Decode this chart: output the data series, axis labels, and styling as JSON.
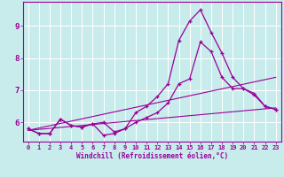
{
  "xlabel": "Windchill (Refroidissement éolien,°C)",
  "bg_color": "#c8ecec",
  "grid_color": "#ffffff",
  "line_color": "#990099",
  "xlim": [
    -0.5,
    23.5
  ],
  "ylim": [
    5.4,
    9.75
  ],
  "xticks": [
    0,
    1,
    2,
    3,
    4,
    5,
    6,
    7,
    8,
    9,
    10,
    11,
    12,
    13,
    14,
    15,
    16,
    17,
    18,
    19,
    20,
    21,
    22,
    23
  ],
  "yticks": [
    6,
    7,
    8,
    9
  ],
  "curve_main_x": [
    0,
    1,
    2,
    3,
    4,
    5,
    6,
    7,
    8,
    9,
    10,
    11,
    12,
    13,
    14,
    15,
    16,
    17,
    18,
    19,
    20,
    21,
    22,
    23
  ],
  "curve_main_y": [
    5.8,
    5.65,
    5.65,
    6.1,
    5.9,
    5.85,
    5.95,
    5.6,
    5.65,
    5.8,
    6.3,
    6.5,
    6.8,
    7.2,
    8.55,
    9.15,
    9.5,
    8.8,
    8.15,
    7.4,
    7.05,
    6.9,
    6.5,
    6.4
  ],
  "curve2_x": [
    0,
    1,
    2,
    3,
    4,
    5,
    6,
    7,
    8,
    9,
    10,
    11,
    12,
    13,
    14,
    15,
    16,
    17,
    18,
    19,
    20,
    21,
    22,
    23
  ],
  "curve2_y": [
    5.8,
    5.65,
    5.65,
    6.1,
    5.9,
    5.85,
    5.95,
    6.0,
    5.7,
    5.8,
    6.0,
    6.15,
    6.3,
    6.6,
    7.2,
    7.35,
    8.5,
    8.2,
    7.4,
    7.05,
    7.05,
    6.85,
    6.5,
    6.4
  ],
  "line1_x": [
    0,
    23
  ],
  "line1_y": [
    5.75,
    7.4
  ],
  "line2_x": [
    0,
    23
  ],
  "line2_y": [
    5.75,
    6.45
  ]
}
